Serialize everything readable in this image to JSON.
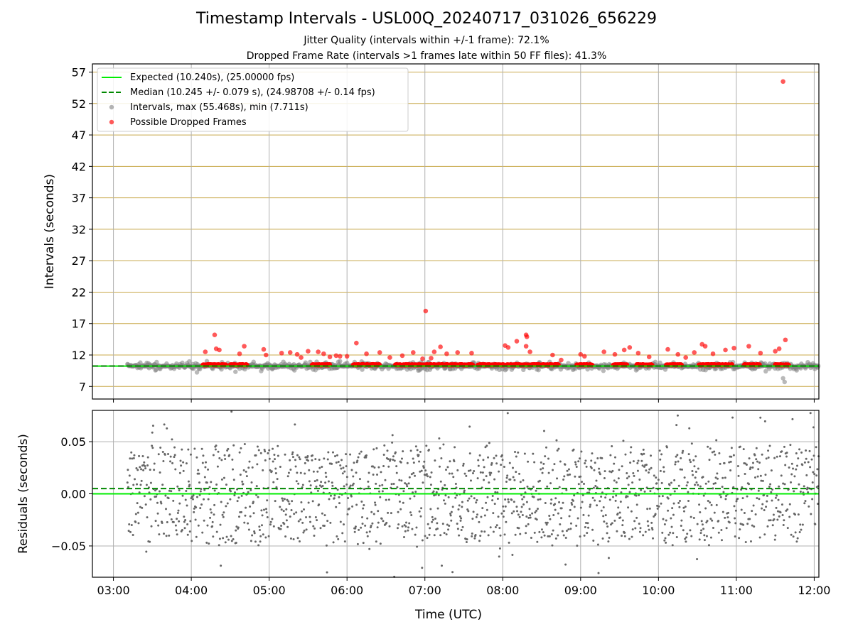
{
  "title": "Timestamp Intervals - USL00Q_20240717_031026_656229",
  "subtitle_1": "Jitter Quality (intervals within +/-1 frame): 72.1%",
  "subtitle_2": "Dropped Frame Rate (intervals >1 frames late within 50 FF files): 41.3%",
  "colors": {
    "expected": "#00ee00",
    "median": "#008800",
    "intervals": "#808080",
    "dropped": "#ff0000",
    "h_grid": "#c8a84a",
    "grid": "#b0b0b0",
    "residual_points": "#666666"
  },
  "chart_data": [
    {
      "type": "scatter",
      "ylabel": "Intervals (seconds)",
      "x_unit": "hours UTC",
      "xlim": [
        2.73,
        12.06
      ],
      "ylim": [
        5.0,
        58.3
      ],
      "yticks": [
        7,
        12,
        17,
        22,
        27,
        32,
        37,
        42,
        47,
        52,
        57
      ],
      "grid": "on",
      "legend_placement": "upper-left",
      "legend": [
        "Expected (10.240s), (25.00000 fps)",
        "Median (10.245 +/- 0.079 s), (24.98708 +/- 0.14 fps)",
        "Intervals, max (55.468s), min (7.711s)",
        "Possible Dropped Frames"
      ],
      "expected_interval": 10.24,
      "median_interval": 10.245,
      "interval_range": {
        "start": 3.18,
        "end": 12.06,
        "baseline": 10.24,
        "max": 55.468,
        "min": 7.711
      },
      "series": [
        {
          "name": "Possible Dropped Frames",
          "x": [
            4.18,
            4.3,
            4.32,
            4.36,
            4.62,
            4.68,
            4.93,
            4.96,
            5.16,
            5.27,
            5.36,
            5.41,
            5.5,
            5.63,
            5.7,
            5.78,
            5.86,
            5.91,
            6.0,
            6.12,
            6.25,
            6.42,
            6.55,
            6.71,
            6.85,
            6.97,
            7.01,
            7.08,
            7.12,
            7.2,
            7.28,
            7.42,
            7.6,
            8.03,
            8.07,
            8.18,
            8.3,
            8.31,
            8.3,
            8.35,
            8.64,
            8.75,
            9.0,
            9.05,
            9.3,
            9.44,
            9.56,
            9.63,
            9.74,
            9.88,
            10.12,
            10.25,
            10.35,
            10.46,
            10.56,
            10.6,
            10.7,
            10.86,
            10.97,
            11.16,
            11.31,
            11.5,
            11.55,
            11.6,
            11.63
          ],
          "y": [
            12.5,
            15.2,
            13.0,
            12.8,
            12.2,
            13.4,
            12.9,
            12.0,
            12.3,
            12.4,
            12.1,
            11.6,
            12.6,
            12.5,
            12.2,
            11.7,
            11.9,
            11.8,
            11.8,
            13.9,
            12.2,
            12.4,
            11.6,
            11.9,
            12.4,
            11.4,
            19.0,
            11.5,
            12.5,
            13.3,
            12.2,
            12.4,
            12.3,
            13.5,
            13.2,
            14.2,
            15.2,
            14.9,
            13.4,
            12.5,
            12.0,
            11.2,
            12.1,
            11.8,
            12.5,
            12.1,
            12.8,
            13.2,
            12.3,
            11.7,
            12.9,
            12.1,
            11.6,
            12.4,
            13.7,
            13.4,
            12.2,
            12.8,
            13.1,
            13.4,
            12.3,
            12.6,
            13.0,
            55.5,
            14.4
          ]
        }
      ]
    },
    {
      "type": "scatter",
      "xlabel": "Time (UTC)",
      "ylabel": "Residuals (seconds)",
      "xlim": [
        2.73,
        12.06
      ],
      "ylim": [
        -0.08,
        0.08
      ],
      "yticks": [
        -0.05,
        0.0,
        0.05
      ],
      "ytick_labels": [
        "−0.05",
        "0.00",
        "0.05"
      ],
      "xticks": [
        3,
        4,
        5,
        6,
        7,
        8,
        9,
        10,
        11,
        12
      ],
      "xtick_labels": [
        "03:00",
        "04:00",
        "05:00",
        "06:00",
        "07:00",
        "08:00",
        "09:00",
        "10:00",
        "11:00",
        "12:00"
      ],
      "grid": "on",
      "expected_residual": 0.0,
      "median_residual": 0.005,
      "residual_range": {
        "start": 3.18,
        "end": 12.06,
        "min": -0.08,
        "max": 0.08
      }
    }
  ]
}
